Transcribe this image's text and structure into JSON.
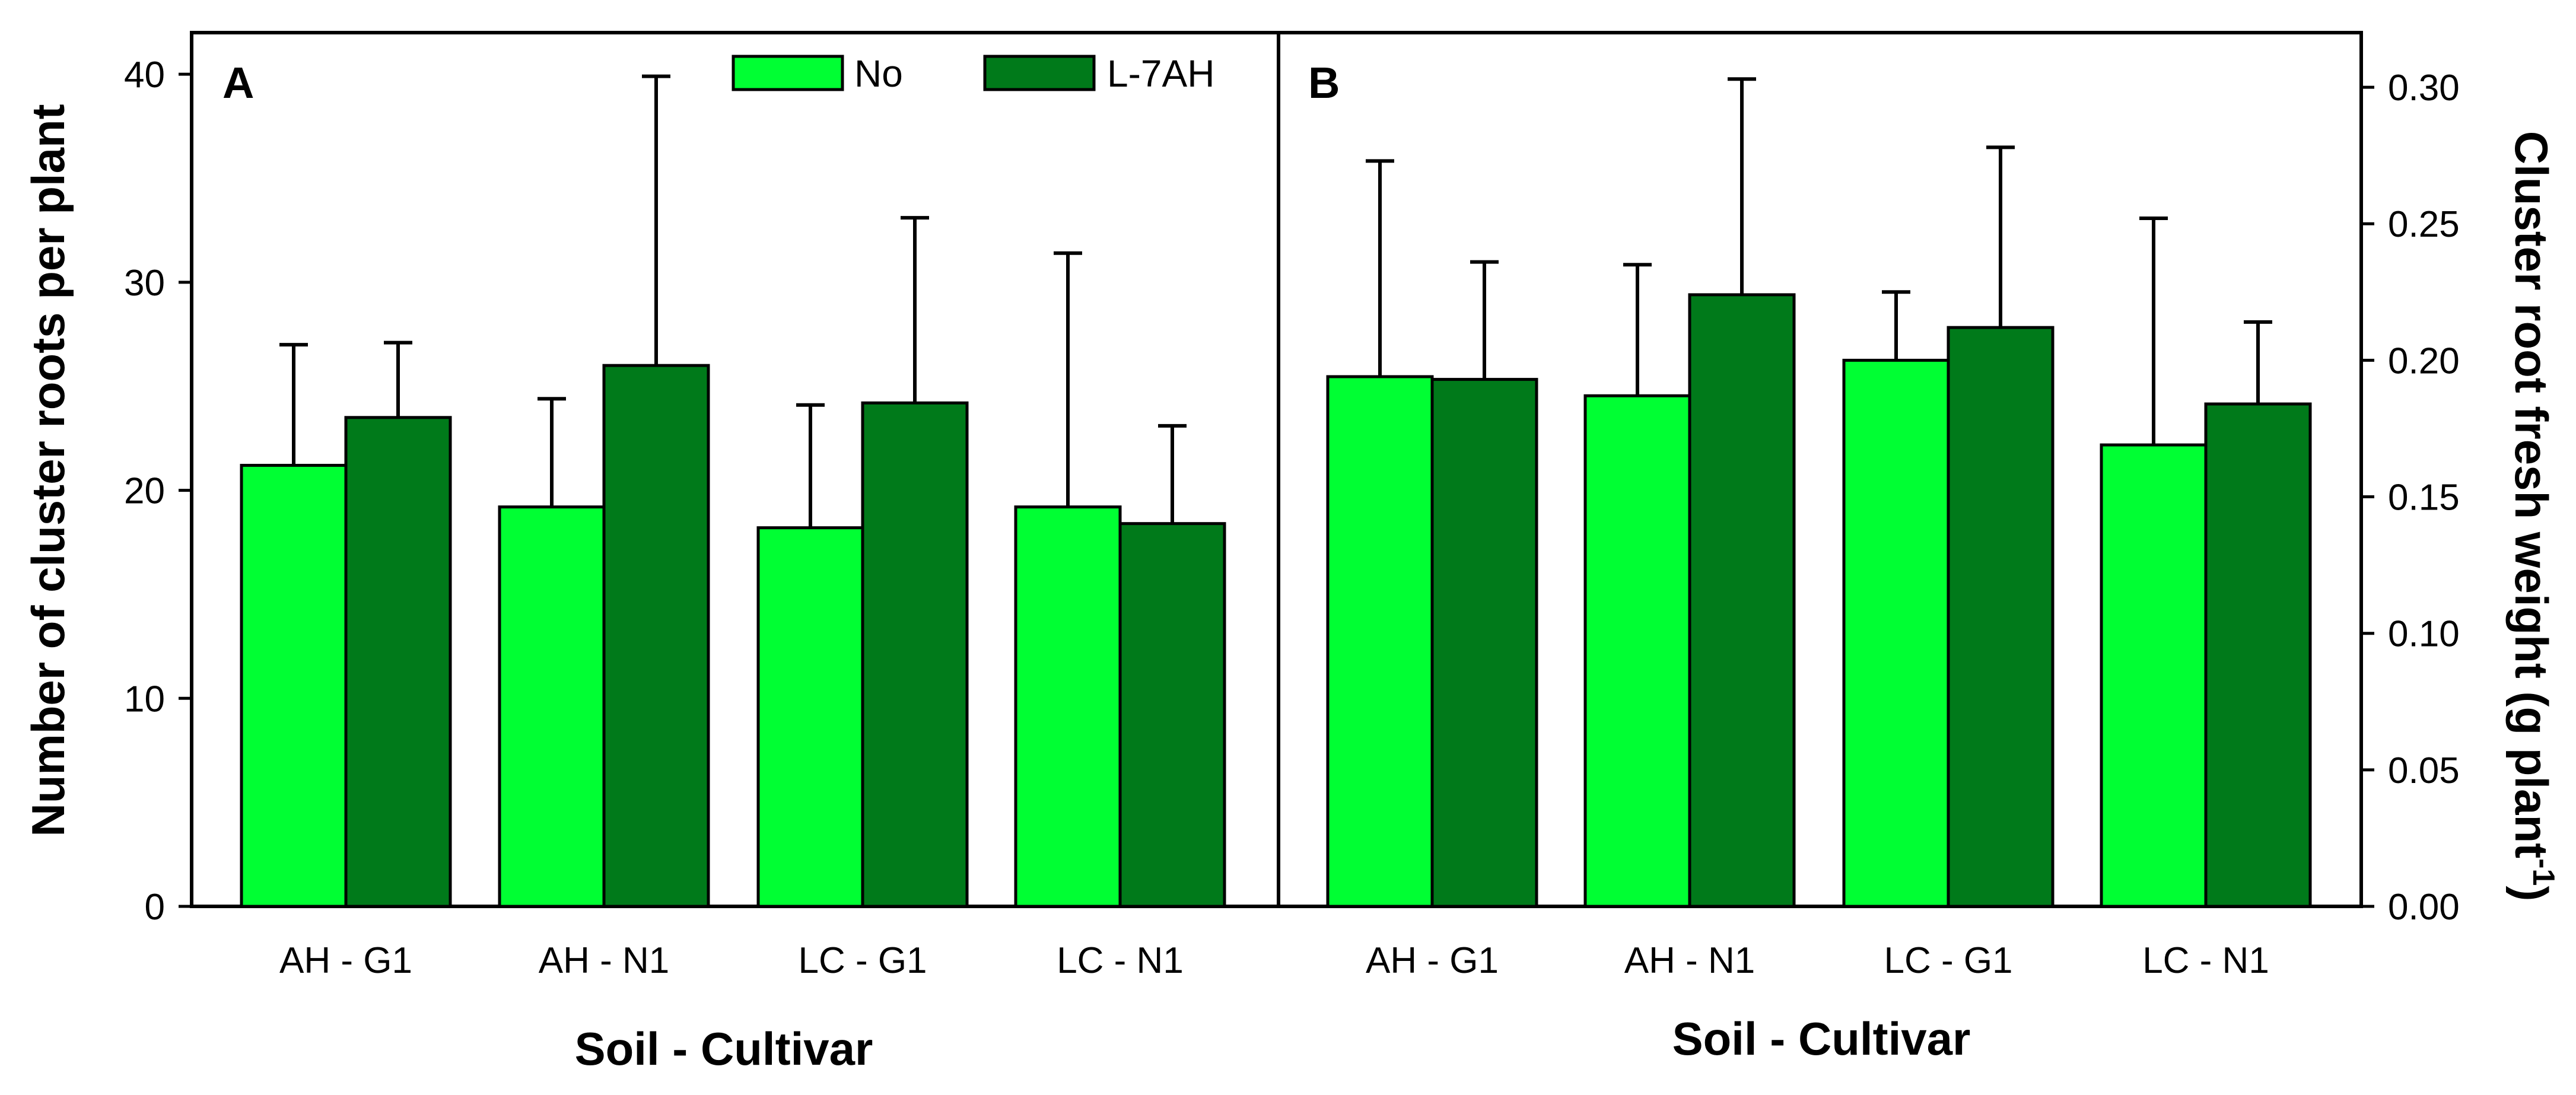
{
  "chart_data": [
    {
      "panel": "A",
      "type": "bar",
      "categories": [
        "AH - G1",
        "AH - N1",
        "LC - G1",
        "LC - N1"
      ],
      "series": [
        {
          "name": "No",
          "color": "#00ff33",
          "values": [
            21.2,
            19.2,
            18.2,
            19.2
          ],
          "errors": [
            5.8,
            5.2,
            5.9,
            12.2
          ]
        },
        {
          "name": "L-7AH",
          "color": "#007a1a",
          "values": [
            23.5,
            26.0,
            24.2,
            18.4
          ],
          "errors": [
            3.6,
            13.9,
            8.9,
            4.7
          ]
        }
      ],
      "ylabel": "Number of cluster roots per plant",
      "xlabel": "Soil - Cultivar",
      "ylim": [
        0,
        42
      ],
      "yticks": [
        "0",
        "10",
        "20",
        "30",
        "40"
      ],
      "ytick_values": [
        0,
        10,
        20,
        30,
        40
      ]
    },
    {
      "panel": "B",
      "type": "bar",
      "categories": [
        "AH - G1",
        "AH - N1",
        "LC - G1",
        "LC - N1"
      ],
      "series": [
        {
          "name": "No",
          "color": "#00ff33",
          "values": [
            0.194,
            0.187,
            0.2,
            0.169
          ],
          "errors": [
            0.079,
            0.048,
            0.025,
            0.083
          ]
        },
        {
          "name": "L-7AH",
          "color": "#007a1a",
          "values": [
            0.193,
            0.224,
            0.212,
            0.184
          ],
          "errors": [
            0.043,
            0.079,
            0.066,
            0.03
          ]
        }
      ],
      "ylabel": "Cluster root fresh weight (g plant",
      "ylabel_sup": "-1",
      "ylabel_close": ")",
      "xlabel": "Soil - Cultivar",
      "ylim": [
        0,
        0.32
      ],
      "yticks": [
        "0.00",
        "0.05",
        "0.10",
        "0.15",
        "0.20",
        "0.25",
        "0.30"
      ],
      "ytick_values": [
        0,
        0.05,
        0.1,
        0.15,
        0.2,
        0.25,
        0.3
      ]
    }
  ],
  "legend": {
    "items": [
      "No",
      "L-7AH"
    ]
  },
  "panels": {
    "a": "A",
    "b": "B"
  }
}
